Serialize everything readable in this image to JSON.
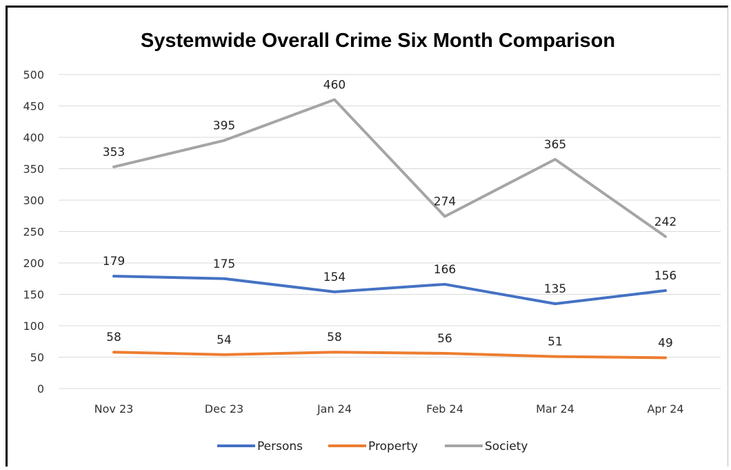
{
  "chart_data": {
    "type": "line",
    "title": "Systemwide Overall Crime Six Month Comparison",
    "categories": [
      "Nov 23",
      "Dec 23",
      "Jan 24",
      "Feb 24",
      "Mar 24",
      "Apr 24"
    ],
    "series": [
      {
        "name": "Persons",
        "values": [
          179,
          175,
          154,
          166,
          135,
          156
        ],
        "color": "#4472c4"
      },
      {
        "name": "Property",
        "values": [
          58,
          54,
          58,
          56,
          51,
          49
        ],
        "color": "#ed7d31"
      },
      {
        "name": "Society",
        "values": [
          353,
          395,
          460,
          274,
          365,
          242
        ],
        "color": "#a5a5a5"
      }
    ],
    "ylim": [
      0,
      500
    ],
    "yticks": [
      0,
      50,
      100,
      150,
      200,
      250,
      300,
      350,
      400,
      450,
      500
    ],
    "grid": true,
    "legend_position": "bottom",
    "xlabel": "",
    "ylabel": ""
  }
}
